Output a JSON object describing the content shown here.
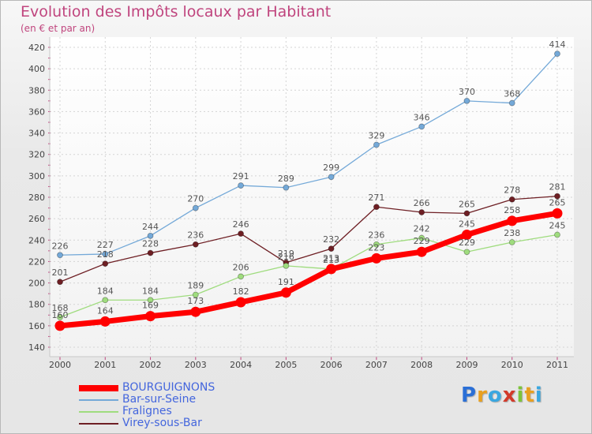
{
  "header": {
    "title": "Evolution des Impôts locaux par Habitant",
    "subtitle": "(en € et par an)"
  },
  "logo": {
    "letters": [
      "P",
      "r",
      "o",
      "x",
      "i",
      "t",
      "i"
    ],
    "colors": [
      "#2a6fd6",
      "#e8a020",
      "#3aa7e0",
      "#d23a2a",
      "#7cc43a",
      "#e8a020",
      "#3aa7e0"
    ]
  },
  "chart_data": {
    "type": "line",
    "x": [
      "2000",
      "2001",
      "2002",
      "2003",
      "2004",
      "2005",
      "2006",
      "2007",
      "2008",
      "2009",
      "2010",
      "2011"
    ],
    "ylim": [
      140,
      420
    ],
    "yticks": [
      140,
      160,
      180,
      200,
      220,
      240,
      260,
      280,
      300,
      320,
      340,
      360,
      380,
      400,
      420
    ],
    "grid": true,
    "legend_position": "bottom-left",
    "series": [
      {
        "name": "Virey-sous-Bar",
        "color": "#6e1f24",
        "values": [
          201,
          218,
          228,
          236,
          246,
          219,
          232,
          271,
          266,
          265,
          278,
          281
        ]
      },
      {
        "name": "Fralignes",
        "color": "#9fdc7e",
        "values": [
          168,
          184,
          184,
          189,
          206,
          216,
          213,
          236,
          242,
          229,
          238,
          245
        ]
      },
      {
        "name": "Bar-sur-Seine",
        "color": "#74a9d8",
        "values": [
          226,
          227,
          244,
          270,
          291,
          289,
          299,
          329,
          346,
          370,
          368,
          414
        ]
      },
      {
        "name": "BOURGUIGNONS",
        "color": "#ff0000",
        "values": [
          160,
          164,
          169,
          173,
          182,
          191,
          213,
          223,
          229,
          245,
          258,
          265
        ]
      }
    ]
  }
}
